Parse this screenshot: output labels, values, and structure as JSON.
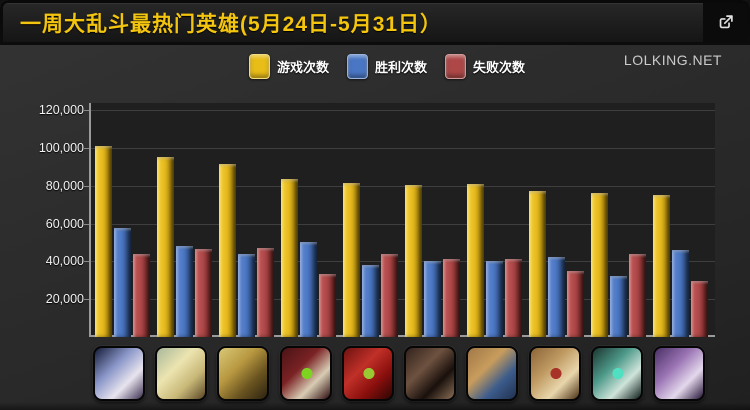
{
  "header": {
    "title": "一周大乱斗最热门英雄(5月24日-5月31日）"
  },
  "external_link": {
    "icon": "external-link-icon"
  },
  "watermark": {
    "text": "LOLKING.NET"
  },
  "legend": [
    {
      "key": "games",
      "label": "游戏次数",
      "color": "#e9bd17"
    },
    {
      "key": "wins",
      "label": "胜利次数",
      "color": "#4a77c4"
    },
    {
      "key": "losses",
      "label": "失败次数",
      "color": "#ae4848"
    }
  ],
  "chart_data": {
    "type": "bar",
    "title": "一周大乱斗最热门英雄(5月24日-5月31日）",
    "categories": [
      "ashe",
      "graves-shells",
      "blonde-fighter",
      "bomb-robot",
      "red-monster",
      "bearded-gunman",
      "garen",
      "teemo",
      "zilean",
      "soraka"
    ],
    "series": [
      {
        "key": "games",
        "name": "游戏次数",
        "color": "#e9bd17",
        "values": [
          101000,
          95000,
          91500,
          83500,
          81500,
          80500,
          81000,
          77000,
          76000,
          75000
        ]
      },
      {
        "key": "wins",
        "name": "胜利次数",
        "color": "#4a77c4",
        "values": [
          57500,
          48000,
          44000,
          50000,
          38000,
          40000,
          40000,
          42500,
          32000,
          46000
        ]
      },
      {
        "key": "losses",
        "name": "失败次数",
        "color": "#ae4848",
        "values": [
          44000,
          46500,
          47000,
          33500,
          44000,
          41000,
          41000,
          35000,
          44000,
          29500
        ]
      }
    ],
    "ylim": [
      0,
      120000
    ],
    "yticks": [
      {
        "value": 120000,
        "label": "120,000"
      },
      {
        "value": 100000,
        "label": "100,000"
      },
      {
        "value": 80000,
        "label": "80,000"
      },
      {
        "value": 60000,
        "label": "60,000"
      },
      {
        "value": 40000,
        "label": "40,000"
      },
      {
        "value": 20000,
        "label": "20,000"
      }
    ],
    "grid": true,
    "legend_position": "top-center"
  },
  "champions": [
    {
      "name": "champion-icon-ashe",
      "colors": [
        "#141c38",
        "#8a96c8",
        "#e8e4ee",
        "#3c3050"
      ]
    },
    {
      "name": "champion-icon-graves-shells",
      "colors": [
        "#a8b89a",
        "#ece4b0",
        "#c8b878",
        "#5a4626"
      ]
    },
    {
      "name": "champion-icon-blonde-fighter",
      "colors": [
        "#d8c878",
        "#b89840",
        "#6a5420",
        "#2c2210"
      ]
    },
    {
      "name": "champion-icon-bomb-robot",
      "colors": [
        "#4a1416",
        "#7a2224",
        "#d8ccb4",
        "#2c0c0e"
      ],
      "accent": "#7ed321"
    },
    {
      "name": "champion-icon-red-monster",
      "colors": [
        "#6e1210",
        "#c03028",
        "#8a0f0d",
        "#2c0604"
      ],
      "accent": "#9ac832"
    },
    {
      "name": "champion-icon-bearded-gunman",
      "colors": [
        "#32231c",
        "#6e5240",
        "#19100c",
        "#8a6e56"
      ]
    },
    {
      "name": "champion-icon-garen",
      "colors": [
        "#a07848",
        "#c89c5c",
        "#3c5c8c",
        "#20304e"
      ]
    },
    {
      "name": "champion-icon-teemo",
      "colors": [
        "#8a6436",
        "#c09a62",
        "#e8d6ac",
        "#4a3014"
      ],
      "accent": "#a83228"
    },
    {
      "name": "champion-icon-zilean",
      "colors": [
        "#1c3430",
        "#4e9a8a",
        "#cfe4da",
        "#0e1c1a"
      ],
      "accent": "#4ee0c0"
    },
    {
      "name": "champion-icon-soraka",
      "colors": [
        "#4a3064",
        "#9a74b4",
        "#e4d8ec",
        "#241436"
      ]
    }
  ]
}
